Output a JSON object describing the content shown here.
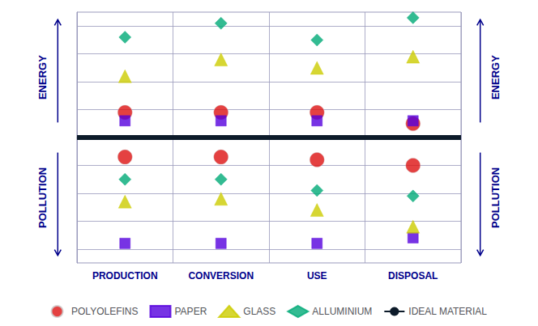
{
  "chart_data": {
    "type": "scatter",
    "categories": [
      "PRODUCTION",
      "CONVERSION",
      "USE",
      "DISPOSAL"
    ],
    "ylim": [
      -4.5,
      4.5
    ],
    "yticks": [
      -4,
      -3,
      -2,
      -1,
      0,
      1,
      2,
      3,
      4
    ],
    "grid": true,
    "tick_labels": "x",
    "legend": "bottom",
    "annotations": [
      {
        "text": "ENERGY",
        "direction": "up"
      },
      {
        "text": "POLLUTION",
        "direction": "down"
      }
    ],
    "series": [
      {
        "name": "POLYOLEFINS",
        "color": "#dd1111",
        "marker": "circle",
        "energy": [
          0.9,
          0.9,
          0.9,
          0.5
        ],
        "pollution": [
          -0.7,
          -0.7,
          -0.8,
          -1.0
        ]
      },
      {
        "name": "PAPER",
        "color": "#5500dd",
        "marker": "square",
        "energy": [
          0.6,
          0.6,
          0.6,
          0.6
        ],
        "pollution": [
          -3.8,
          -3.8,
          -3.8,
          -3.6
        ]
      },
      {
        "name": "GLASS",
        "color": "#cccc00",
        "marker": "triangle",
        "energy": [
          2.2,
          2.8,
          2.5,
          2.9
        ],
        "pollution": [
          -2.3,
          -2.2,
          -2.6,
          -3.2
        ]
      },
      {
        "name": "ALLUMINIUM",
        "color": "#00aa77",
        "marker": "diamond",
        "energy": [
          3.6,
          4.1,
          3.5,
          4.3
        ],
        "pollution": [
          -1.5,
          -1.5,
          -1.9,
          -2.1
        ]
      },
      {
        "name": "IDEAL MATERIAL",
        "type": "line",
        "color": "#0d1b2a",
        "value": 0
      }
    ]
  }
}
